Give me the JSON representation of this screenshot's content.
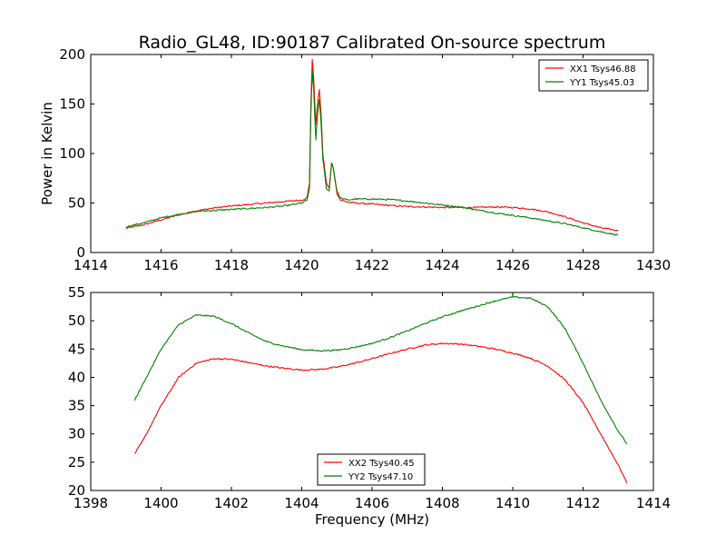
{
  "figure": {
    "title": "Radio_GL48, ID:90187 Calibrated On-source spectrum"
  },
  "chart_data": [
    {
      "type": "line",
      "title": "Radio_GL48, ID:90187 Calibrated On-source spectrum",
      "xlabel": "",
      "ylabel": "Power in Kelvin",
      "xlim": [
        1414,
        1430
      ],
      "ylim": [
        0,
        200
      ],
      "xticks": [
        1414,
        1416,
        1418,
        1420,
        1422,
        1424,
        1426,
        1428,
        1430
      ],
      "yticks": [
        0,
        50,
        100,
        150,
        200
      ],
      "grid": false,
      "legend_position": "top-right",
      "series": [
        {
          "name": "XX1 Tsys46.88",
          "color": "#ff0000",
          "points": [
            [
              1415.0,
              24.5
            ],
            [
              1415.5,
              28
            ],
            [
              1416.0,
              33
            ],
            [
              1416.5,
              38
            ],
            [
              1417.0,
              42
            ],
            [
              1417.5,
              45
            ],
            [
              1418.0,
              47
            ],
            [
              1418.5,
              48.5
            ],
            [
              1419.0,
              50
            ],
            [
              1419.5,
              51.5
            ],
            [
              1420.0,
              53
            ],
            [
              1420.15,
              55
            ],
            [
              1420.22,
              70
            ],
            [
              1420.26,
              150
            ],
            [
              1420.3,
              195
            ],
            [
              1420.34,
              175
            ],
            [
              1420.4,
              130
            ],
            [
              1420.45,
              150
            ],
            [
              1420.5,
              165
            ],
            [
              1420.55,
              140
            ],
            [
              1420.6,
              100
            ],
            [
              1420.7,
              70
            ],
            [
              1420.78,
              65
            ],
            [
              1420.85,
              90
            ],
            [
              1420.9,
              85
            ],
            [
              1421.0,
              60
            ],
            [
              1421.1,
              53
            ],
            [
              1421.3,
              51
            ],
            [
              1421.5,
              50
            ],
            [
              1422.0,
              49
            ],
            [
              1422.5,
              47.5
            ],
            [
              1423.0,
              46.5
            ],
            [
              1423.5,
              46
            ],
            [
              1424.0,
              45.5
            ],
            [
              1424.5,
              45.5
            ],
            [
              1425.0,
              45.5
            ],
            [
              1425.5,
              46
            ],
            [
              1426.0,
              45.5
            ],
            [
              1426.5,
              44
            ],
            [
              1427.0,
              41
            ],
            [
              1427.5,
              36
            ],
            [
              1428.0,
              30
            ],
            [
              1428.5,
              25
            ],
            [
              1429.0,
              22
            ]
          ]
        },
        {
          "name": "YY1 Tsys45.03",
          "color": "#008000",
          "points": [
            [
              1415.0,
              26
            ],
            [
              1415.5,
              30
            ],
            [
              1416.0,
              35
            ],
            [
              1416.5,
              38.5
            ],
            [
              1417.0,
              41.5
            ],
            [
              1417.5,
              42.5
            ],
            [
              1418.0,
              43.5
            ],
            [
              1418.5,
              44.5
            ],
            [
              1419.0,
              45.5
            ],
            [
              1419.5,
              47
            ],
            [
              1420.0,
              50
            ],
            [
              1420.15,
              53
            ],
            [
              1420.22,
              65
            ],
            [
              1420.26,
              140
            ],
            [
              1420.3,
              183
            ],
            [
              1420.34,
              165
            ],
            [
              1420.4,
              113
            ],
            [
              1420.45,
              140
            ],
            [
              1420.5,
              155
            ],
            [
              1420.55,
              130
            ],
            [
              1420.6,
              95
            ],
            [
              1420.7,
              65
            ],
            [
              1420.78,
              62
            ],
            [
              1420.85,
              91
            ],
            [
              1420.9,
              85
            ],
            [
              1421.0,
              62
            ],
            [
              1421.1,
              55
            ],
            [
              1421.3,
              53
            ],
            [
              1421.5,
              54
            ],
            [
              1422.0,
              54
            ],
            [
              1422.5,
              53.5
            ],
            [
              1423.0,
              52
            ],
            [
              1423.5,
              50
            ],
            [
              1424.0,
              48
            ],
            [
              1424.5,
              46
            ],
            [
              1425.0,
              43
            ],
            [
              1425.5,
              40
            ],
            [
              1426.0,
              37.5
            ],
            [
              1426.5,
              35
            ],
            [
              1427.0,
              32
            ],
            [
              1427.5,
              29
            ],
            [
              1428.0,
              25
            ],
            [
              1428.5,
              21
            ],
            [
              1429.0,
              17.5
            ]
          ]
        }
      ]
    },
    {
      "type": "line",
      "title": "",
      "xlabel": "Frequency (MHz)",
      "ylabel": "",
      "xlim": [
        1398,
        1414
      ],
      "ylim": [
        20,
        55
      ],
      "xticks": [
        1398,
        1400,
        1402,
        1404,
        1406,
        1408,
        1410,
        1412,
        1414
      ],
      "yticks": [
        20,
        25,
        30,
        35,
        40,
        45,
        50,
        55
      ],
      "grid": false,
      "legend_position": "bottom-center",
      "series": [
        {
          "name": "XX2 Tsys40.45",
          "color": "#ff0000",
          "points": [
            [
              1399.25,
              26.5
            ],
            [
              1399.5,
              29
            ],
            [
              1400.0,
              35
            ],
            [
              1400.5,
              40
            ],
            [
              1401.0,
              42.5
            ],
            [
              1401.5,
              43.3
            ],
            [
              1402.0,
              43.2
            ],
            [
              1402.5,
              42.6
            ],
            [
              1403.0,
              42
            ],
            [
              1403.5,
              41.6
            ],
            [
              1404.0,
              41.3
            ],
            [
              1404.5,
              41.4
            ],
            [
              1405.0,
              41.8
            ],
            [
              1405.5,
              42.5
            ],
            [
              1406.0,
              43.3
            ],
            [
              1406.5,
              44.2
            ],
            [
              1407.0,
              45
            ],
            [
              1407.5,
              45.7
            ],
            [
              1408.0,
              46
            ],
            [
              1408.5,
              45.9
            ],
            [
              1409.0,
              45.5
            ],
            [
              1409.5,
              45
            ],
            [
              1410.0,
              44.3
            ],
            [
              1410.5,
              43.4
            ],
            [
              1411.0,
              42
            ],
            [
              1411.5,
              39.5
            ],
            [
              1412.0,
              35.5
            ],
            [
              1412.5,
              30
            ],
            [
              1413.0,
              24.5
            ],
            [
              1413.25,
              21.3
            ]
          ]
        },
        {
          "name": "YY2 Tsys47.10",
          "color": "#008000",
          "points": [
            [
              1399.25,
              36
            ],
            [
              1399.5,
              39
            ],
            [
              1400.0,
              45
            ],
            [
              1400.5,
              49.3
            ],
            [
              1401.0,
              51
            ],
            [
              1401.5,
              50.8
            ],
            [
              1402.0,
              49.5
            ],
            [
              1402.5,
              47.8
            ],
            [
              1403.0,
              46.3
            ],
            [
              1403.5,
              45.5
            ],
            [
              1404.0,
              44.9
            ],
            [
              1404.5,
              44.7
            ],
            [
              1405.0,
              44.8
            ],
            [
              1405.5,
              45.3
            ],
            [
              1406.0,
              46
            ],
            [
              1406.5,
              47
            ],
            [
              1407.0,
              48.2
            ],
            [
              1407.5,
              49.5
            ],
            [
              1408.0,
              50.7
            ],
            [
              1408.5,
              51.7
            ],
            [
              1409.0,
              52.6
            ],
            [
              1409.5,
              53.5
            ],
            [
              1410.0,
              54.2
            ],
            [
              1410.5,
              54
            ],
            [
              1411.0,
              52.5
            ],
            [
              1411.5,
              48.5
            ],
            [
              1412.0,
              42.5
            ],
            [
              1412.5,
              36
            ],
            [
              1413.0,
              30.5
            ],
            [
              1413.25,
              28.2
            ]
          ]
        }
      ]
    }
  ]
}
